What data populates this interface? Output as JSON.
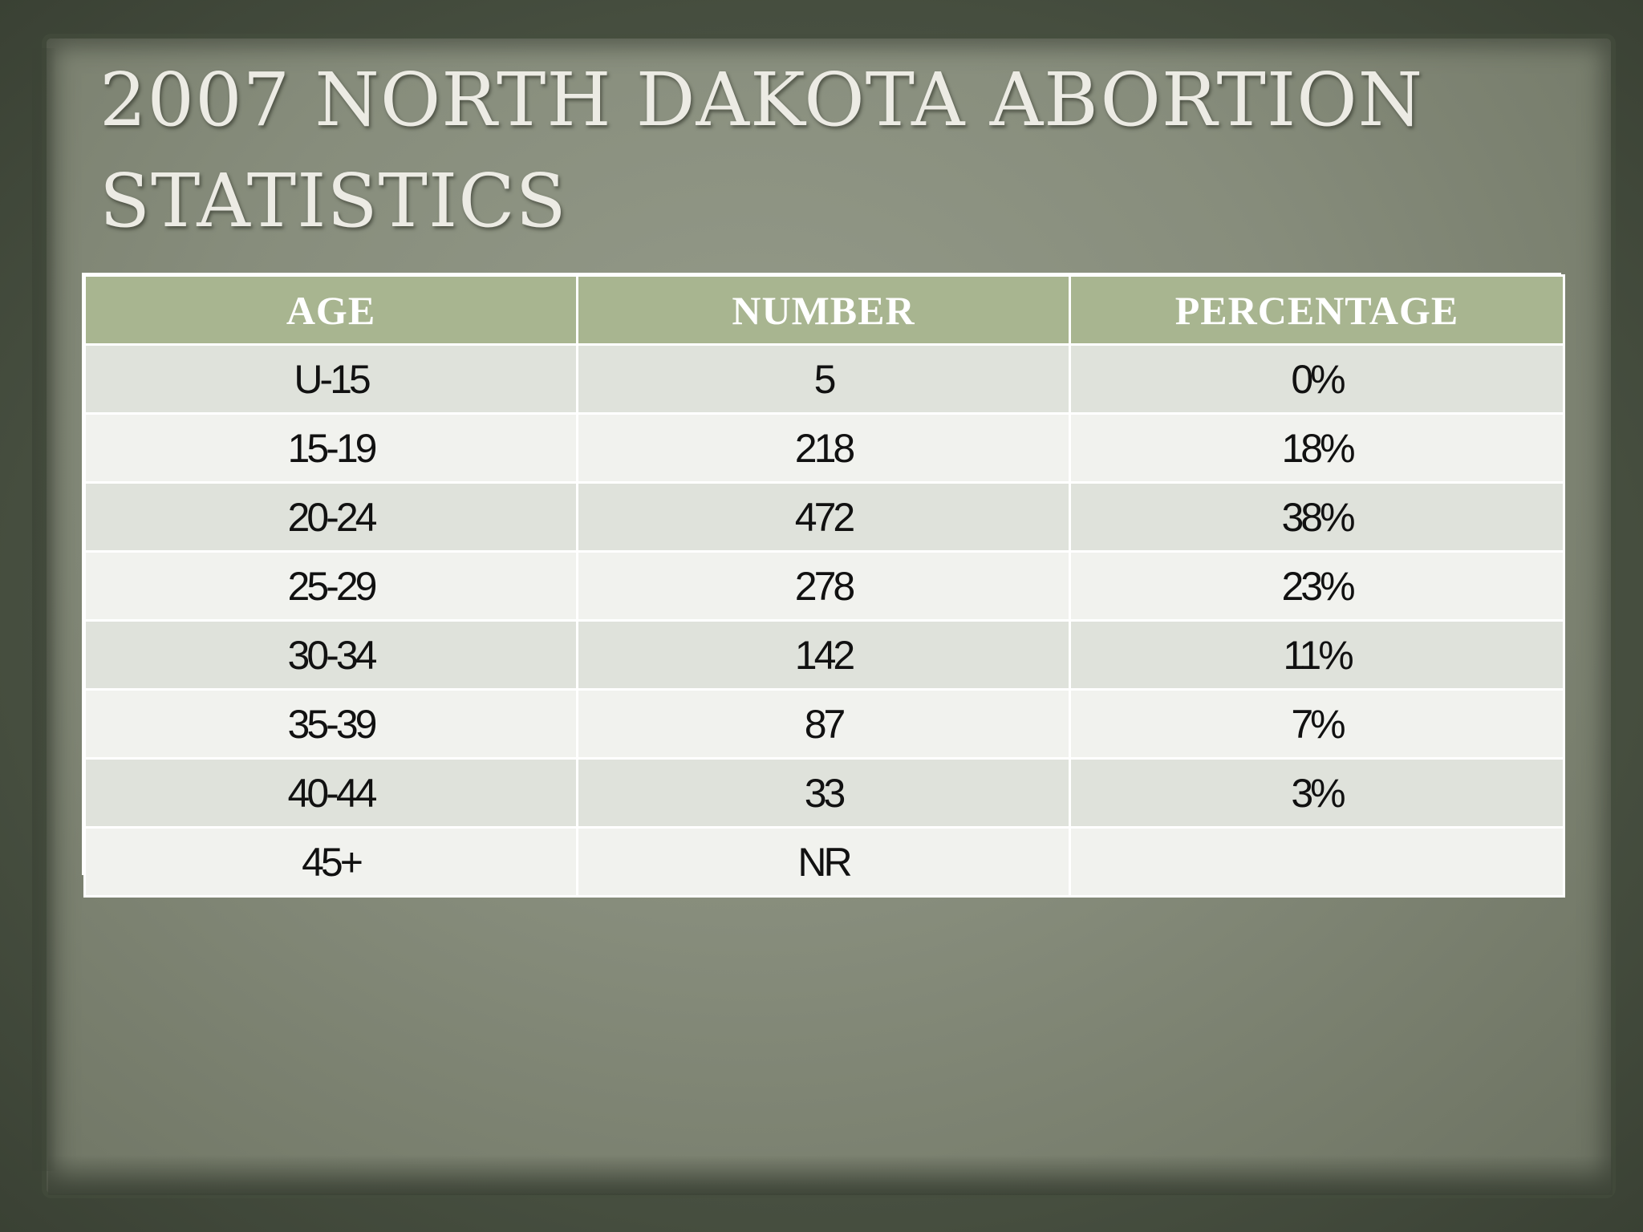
{
  "slide": {
    "title_line1": "2007 NORTH DAKOTA ABORTION",
    "title_line2": "STATISTICS"
  },
  "table": {
    "headers": [
      "AGE",
      "NUMBER",
      "PERCENTAGE"
    ],
    "rows": [
      [
        "U-15",
        "5",
        "0%"
      ],
      [
        "15-19",
        "218",
        "18%"
      ],
      [
        "20-24",
        "472",
        "38%"
      ],
      [
        "25-29",
        "278",
        "23%"
      ],
      [
        "30-34",
        "142",
        "11%"
      ],
      [
        "35-39",
        "87",
        "7%"
      ],
      [
        "40-44",
        "33",
        "3%"
      ],
      [
        "45+",
        "NR",
        ""
      ]
    ]
  },
  "colors": {
    "header_bg": "#a8b590",
    "row_odd_bg": "#dfe2db",
    "row_even_bg": "#f1f2ee",
    "paper": "#878d7c",
    "frame": "#4a5242",
    "title_text": "#ecebe4"
  }
}
